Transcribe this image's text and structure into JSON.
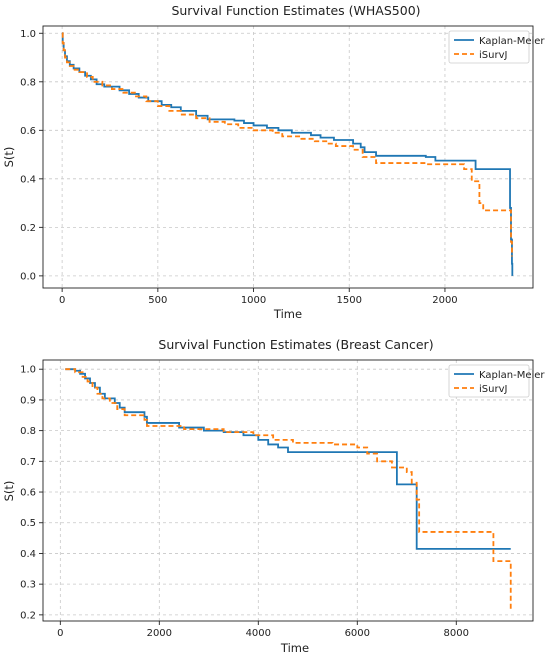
{
  "chart_data": [
    {
      "type": "line",
      "title": "Survival Function Estimates (WHAS500)",
      "xlabel": "Time",
      "ylabel": "S(t)",
      "xlim": [
        -100,
        2460
      ],
      "ylim": [
        -0.05,
        1.03
      ],
      "xticks": [
        0,
        500,
        1000,
        1500,
        2000
      ],
      "yticks": [
        0.0,
        0.2,
        0.4,
        0.6,
        0.8,
        1.0
      ],
      "ytick_labels": [
        "0.0",
        "0.2",
        "0.4",
        "0.6",
        "0.8",
        "1.0"
      ],
      "grid": true,
      "legend_position": "top-right",
      "series": [
        {
          "name": "Kaplan-Meier",
          "color": "#1f77b4",
          "style": "solid",
          "points": [
            [
              0,
              1.0
            ],
            [
              3,
              0.96
            ],
            [
              8,
              0.93
            ],
            [
              15,
              0.905
            ],
            [
              25,
              0.885
            ],
            [
              40,
              0.87
            ],
            [
              60,
              0.855
            ],
            [
              90,
              0.84
            ],
            [
              120,
              0.825
            ],
            [
              150,
              0.81
            ],
            [
              180,
              0.79
            ],
            [
              220,
              0.78
            ],
            [
              300,
              0.765
            ],
            [
              350,
              0.75
            ],
            [
              400,
              0.735
            ],
            [
              450,
              0.72
            ],
            [
              520,
              0.705
            ],
            [
              570,
              0.695
            ],
            [
              620,
              0.68
            ],
            [
              700,
              0.66
            ],
            [
              760,
              0.645
            ],
            [
              900,
              0.64
            ],
            [
              950,
              0.63
            ],
            [
              1000,
              0.62
            ],
            [
              1070,
              0.61
            ],
            [
              1130,
              0.6
            ],
            [
              1200,
              0.59
            ],
            [
              1300,
              0.58
            ],
            [
              1350,
              0.57
            ],
            [
              1420,
              0.56
            ],
            [
              1520,
              0.545
            ],
            [
              1560,
              0.53
            ],
            [
              1580,
              0.51
            ],
            [
              1640,
              0.495
            ],
            [
              1900,
              0.49
            ],
            [
              1950,
              0.475
            ],
            [
              2160,
              0.475
            ],
            [
              2160,
              0.44
            ],
            [
              2340,
              0.44
            ],
            [
              2340,
              0.28
            ],
            [
              2345,
              0.15
            ],
            [
              2350,
              0.05
            ],
            [
              2352,
              0.0
            ]
          ]
        },
        {
          "name": "iSurvJ",
          "color": "#ff7f0e",
          "style": "dashed",
          "points": [
            [
              0,
              1.0
            ],
            [
              3,
              0.96
            ],
            [
              8,
              0.93
            ],
            [
              15,
              0.9
            ],
            [
              25,
              0.88
            ],
            [
              40,
              0.865
            ],
            [
              60,
              0.85
            ],
            [
              90,
              0.84
            ],
            [
              130,
              0.82
            ],
            [
              160,
              0.8
            ],
            [
              210,
              0.785
            ],
            [
              260,
              0.77
            ],
            [
              320,
              0.755
            ],
            [
              380,
              0.74
            ],
            [
              440,
              0.72
            ],
            [
              500,
              0.7
            ],
            [
              560,
              0.68
            ],
            [
              620,
              0.665
            ],
            [
              700,
              0.65
            ],
            [
              770,
              0.635
            ],
            [
              850,
              0.625
            ],
            [
              920,
              0.61
            ],
            [
              1000,
              0.6
            ],
            [
              1100,
              0.59
            ],
            [
              1150,
              0.575
            ],
            [
              1250,
              0.565
            ],
            [
              1320,
              0.555
            ],
            [
              1380,
              0.545
            ],
            [
              1430,
              0.535
            ],
            [
              1520,
              0.52
            ],
            [
              1570,
              0.49
            ],
            [
              1640,
              0.465
            ],
            [
              1900,
              0.46
            ],
            [
              2100,
              0.44
            ],
            [
              2140,
              0.39
            ],
            [
              2180,
              0.3
            ],
            [
              2200,
              0.27
            ],
            [
              2340,
              0.27
            ],
            [
              2345,
              0.14
            ],
            [
              2350,
              0.08
            ]
          ]
        }
      ]
    },
    {
      "type": "line",
      "title": "Survival Function Estimates (Breast Cancer)",
      "xlabel": "Time",
      "ylabel": "S(t)",
      "xlim": [
        -350,
        9550
      ],
      "ylim": [
        0.18,
        1.03
      ],
      "xticks": [
        0,
        2000,
        4000,
        6000,
        8000
      ],
      "yticks": [
        0.2,
        0.3,
        0.4,
        0.5,
        0.6,
        0.7,
        0.8,
        0.9,
        1.0
      ],
      "ytick_labels": [
        "0.2",
        "0.3",
        "0.4",
        "0.5",
        "0.6",
        "0.7",
        "0.8",
        "0.9",
        "1.0"
      ],
      "grid": true,
      "legend_position": "top-right",
      "series": [
        {
          "name": "Kaplan-Meier",
          "color": "#1f77b4",
          "style": "solid",
          "points": [
            [
              100,
              1.0
            ],
            [
              300,
              0.995
            ],
            [
              400,
              0.985
            ],
            [
              500,
              0.97
            ],
            [
              600,
              0.955
            ],
            [
              700,
              0.94
            ],
            [
              800,
              0.92
            ],
            [
              900,
              0.905
            ],
            [
              1100,
              0.89
            ],
            [
              1200,
              0.875
            ],
            [
              1300,
              0.86
            ],
            [
              1700,
              0.845
            ],
            [
              1750,
              0.825
            ],
            [
              2400,
              0.81
            ],
            [
              2900,
              0.8
            ],
            [
              3300,
              0.795
            ],
            [
              3700,
              0.785
            ],
            [
              4000,
              0.77
            ],
            [
              4200,
              0.755
            ],
            [
              4400,
              0.745
            ],
            [
              4600,
              0.73
            ],
            [
              6800,
              0.73
            ],
            [
              6800,
              0.625
            ],
            [
              7200,
              0.625
            ],
            [
              7200,
              0.415
            ],
            [
              9100,
              0.415
            ]
          ]
        },
        {
          "name": "iSurvJ",
          "color": "#ff7f0e",
          "style": "dashed",
          "points": [
            [
              100,
              1.0
            ],
            [
              300,
              0.99
            ],
            [
              450,
              0.975
            ],
            [
              550,
              0.96
            ],
            [
              650,
              0.94
            ],
            [
              750,
              0.92
            ],
            [
              850,
              0.905
            ],
            [
              1000,
              0.89
            ],
            [
              1150,
              0.87
            ],
            [
              1300,
              0.85
            ],
            [
              1700,
              0.835
            ],
            [
              1750,
              0.815
            ],
            [
              2500,
              0.805
            ],
            [
              3300,
              0.795
            ],
            [
              3900,
              0.785
            ],
            [
              4300,
              0.77
            ],
            [
              4700,
              0.76
            ],
            [
              5500,
              0.755
            ],
            [
              6000,
              0.745
            ],
            [
              6200,
              0.725
            ],
            [
              6400,
              0.7
            ],
            [
              6700,
              0.68
            ],
            [
              7000,
              0.665
            ],
            [
              7100,
              0.63
            ],
            [
              7200,
              0.575
            ],
            [
              7250,
              0.47
            ],
            [
              8700,
              0.47
            ],
            [
              8750,
              0.375
            ],
            [
              9100,
              0.375
            ],
            [
              9100,
              0.21
            ]
          ]
        }
      ]
    }
  ]
}
